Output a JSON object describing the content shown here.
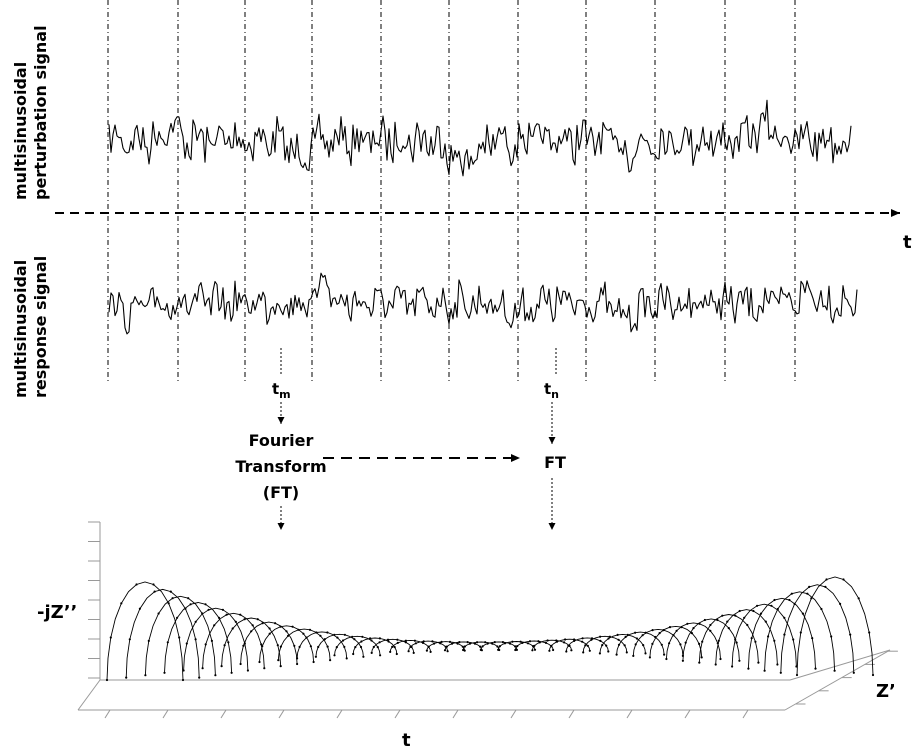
{
  "labels": {
    "perturbation_line1": "multisinusoidal",
    "perturbation_line2": "perturbation signal",
    "response_line1": "multisinusoidal",
    "response_line2": "response signal",
    "time_axis": "t",
    "tm_main": "t",
    "tm_sub": "m",
    "tn_main": "t",
    "tn_sub": "n",
    "fourier_line1": "Fourier",
    "fourier_line2": "Transform",
    "fourier_line3": "(FT)",
    "ft_short": "FT",
    "imag_axis": "-jZ’’",
    "real_axis": "Z’",
    "bottom_time_axis": "t"
  },
  "colors": {
    "ink": "#000000",
    "background": "#ffffff"
  }
}
